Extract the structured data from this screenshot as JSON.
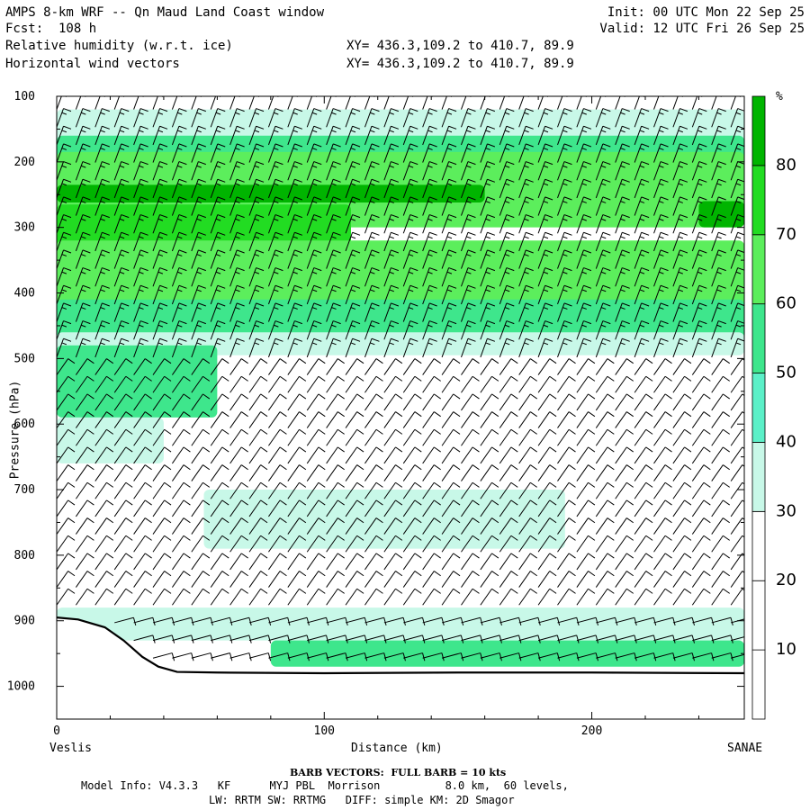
{
  "header": {
    "title": "AMPS 8-km WRF -- Qn Maud Land Coast window",
    "forecast": "Fcst:  108 h",
    "field1": "Relative humidity (w.r.t. ice)",
    "field2": "Horizontal wind vectors",
    "xy1": "XY= 436.3,109.2 to 410.7, 89.9",
    "xy2": "XY= 436.3,109.2 to 410.7, 89.9",
    "init": "Init: 00 UTC Mon 22 Sep 25",
    "valid": "Valid: 12 UTC Fri 26 Sep 25"
  },
  "chart_data": {
    "type": "heatmap",
    "xlabel": "Distance (km)",
    "ylabel": "Pressure (hPa)",
    "x_start_label": "Veslis",
    "x_end_label": "SANAE",
    "xlim": [
      0,
      257
    ],
    "ylim": [
      1050,
      100
    ],
    "x_ticks": [
      0,
      100,
      200
    ],
    "y_ticks": [
      100,
      200,
      300,
      400,
      500,
      600,
      700,
      800,
      900,
      1000
    ],
    "colorbar": {
      "unit": "%",
      "levels": [
        0,
        10,
        20,
        30,
        40,
        50,
        60,
        70,
        80,
        90
      ],
      "tick_labels": [
        "10",
        "20",
        "30",
        "40",
        "50",
        "60",
        "70",
        "80"
      ],
      "colors": [
        "#ffffff",
        "#ffffff",
        "#ffffff",
        "#c8f8e8",
        "#5cf0c8",
        "#3ee68c",
        "#5cee5c",
        "#22dc22",
        "#00b400"
      ]
    },
    "terrain_surface_hPa": [
      [
        0,
        895
      ],
      [
        8,
        898
      ],
      [
        18,
        910
      ],
      [
        25,
        930
      ],
      [
        32,
        955
      ],
      [
        38,
        970
      ],
      [
        45,
        978
      ],
      [
        60,
        979
      ],
      [
        100,
        980
      ],
      [
        150,
        979
      ],
      [
        200,
        979
      ],
      [
        257,
        980
      ]
    ],
    "rh_layers": [
      {
        "rh": 35,
        "x": [
          0,
          257
        ],
        "p": [
          120,
          170
        ]
      },
      {
        "rh": 55,
        "x": [
          0,
          257
        ],
        "p": [
          160,
          200
        ]
      },
      {
        "rh": 65,
        "x": [
          0,
          257
        ],
        "p": [
          185,
          300
        ]
      },
      {
        "rh": 80,
        "x": [
          0,
          160
        ],
        "p": [
          235,
          262
        ]
      },
      {
        "rh": 80,
        "x": [
          240,
          257
        ],
        "p": [
          260,
          300
        ]
      },
      {
        "rh": 75,
        "x": [
          0,
          110
        ],
        "p": [
          265,
          340
        ]
      },
      {
        "rh": 65,
        "x": [
          0,
          257
        ],
        "p": [
          320,
          420
        ]
      },
      {
        "rh": 50,
        "x": [
          0,
          257
        ],
        "p": [
          410,
          470
        ]
      },
      {
        "rh": 35,
        "x": [
          0,
          257
        ],
        "p": [
          460,
          495
        ]
      },
      {
        "rh": 55,
        "x": [
          0,
          60
        ],
        "p": [
          480,
          590
        ]
      },
      {
        "rh": 35,
        "x": [
          0,
          40
        ],
        "p": [
          590,
          660
        ]
      },
      {
        "rh": 35,
        "x": [
          55,
          190
        ],
        "p": [
          700,
          790
        ]
      },
      {
        "rh": 35,
        "x": [
          0,
          257
        ],
        "p": [
          880,
          930
        ]
      },
      {
        "rh": 50,
        "x": [
          80,
          257
        ],
        "p": [
          930,
          970
        ]
      }
    ],
    "wind": {
      "unit": "kts",
      "full_barb": 10,
      "note": "BARB VECTORS:  FULL BARB = 10 kts"
    }
  },
  "footer": {
    "barb_note": "BARB VECTORS:  FULL BARB = 10 kts",
    "model_info": "Model Info: V4.3.3   KF      MYJ PBL  Morrison          8.0 km,  60 levels,",
    "model_info2": "LW: RRTM SW: RRTMG   DIFF: simple KM: 2D Smagor"
  }
}
